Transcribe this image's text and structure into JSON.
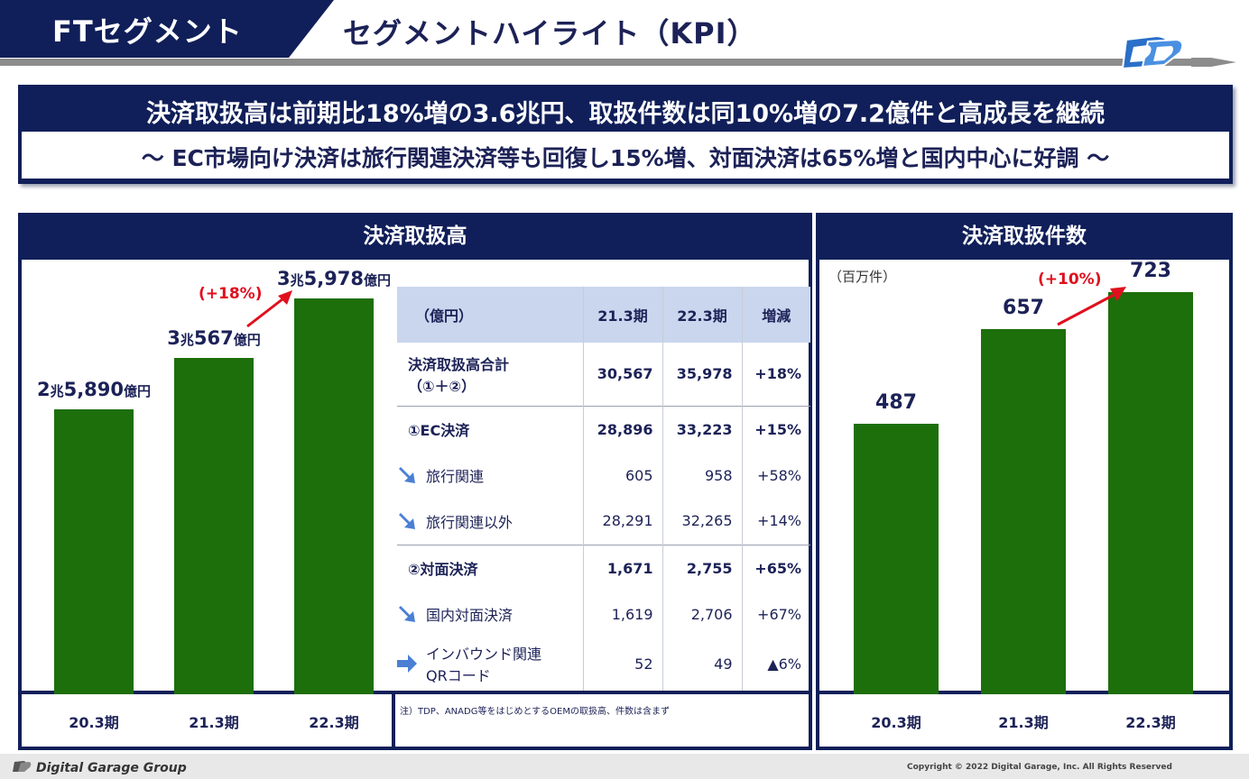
{
  "header": {
    "segment_tag": "FTセグメント",
    "title": "セグメントハイライト（KPI）",
    "logo_icon": "dg-logo-icon"
  },
  "banner": {
    "main": "決済取扱高は前期比18%増の3.6兆円、取扱件数は同10%増の7.2億件と高成長を継続",
    "sub": "～ EC市場向け決済は旅行関連決済等も回復し15%増、対面決済は65%増と国内中心に好調 ～"
  },
  "left_panel": {
    "title": "決済取扱高",
    "growth_label": "(+18%)",
    "bar_labels": [
      {
        "big1": "2",
        "small1": "兆",
        "big2": "5,890",
        "small2": "億円"
      },
      {
        "big1": "3",
        "small1": "兆",
        "big2": "567",
        "small2": "億円"
      },
      {
        "big1": "3",
        "small1": "兆",
        "big2": "5,978",
        "small2": "億円"
      }
    ]
  },
  "table": {
    "headers": [
      "（億円）",
      "21.3期",
      "22.3期",
      "増減"
    ],
    "rows": [
      {
        "label": "決済取扱高合計",
        "label2": "（①＋②）",
        "v1": "30,567",
        "v2": "35,978",
        "chg": "+18%",
        "bold": true
      },
      {
        "label": "①EC決済",
        "v1": "28,896",
        "v2": "33,223",
        "chg": "+15%",
        "bold": true
      },
      {
        "label": "旅行関連",
        "v1": "605",
        "v2": "958",
        "chg": "+58%",
        "icon": "up-right-arrow-icon"
      },
      {
        "label": "旅行関連以外",
        "v1": "28,291",
        "v2": "32,265",
        "chg": "+14%",
        "icon": "up-right-arrow-icon"
      },
      {
        "label": "②対面決済",
        "v1": "1,671",
        "v2": "2,755",
        "chg": "+65%",
        "bold": true
      },
      {
        "label": "国内対面決済",
        "v1": "1,619",
        "v2": "2,706",
        "chg": "+67%",
        "icon": "up-right-arrow-icon"
      },
      {
        "label": "インバウンド関連",
        "label2": "QRコード",
        "v1": "52",
        "v2": "49",
        "chg": "▲6%",
        "icon": "right-arrow-icon"
      }
    ],
    "footnote": "注）TDP、ANADG等をはじめとするOEMの取扱高、件数は含まず"
  },
  "right_panel": {
    "title": "決済取扱件数",
    "unit": "（百万件）",
    "growth_label": "(+10%)"
  },
  "footer": {
    "brand": "Digital Garage Group",
    "copyright": "Copyright © 2022 Digital Garage, Inc. All Rights Reserved"
  },
  "colors": {
    "navy": "#101f59",
    "bar_green": "#1d6f0b",
    "growth_red": "#e0101e",
    "table_header": "#c9d6ee",
    "arrow_blue": "#4a7fd4"
  },
  "chart_data": [
    {
      "type": "bar",
      "title": "決済取扱高",
      "categories": [
        "20.3期",
        "21.3期",
        "22.3期"
      ],
      "values": [
        25890,
        30567,
        35978
      ],
      "unit": "億円",
      "ylim": [
        0,
        42000
      ]
    },
    {
      "type": "bar",
      "title": "決済取扱件数",
      "categories": [
        "20.3期",
        "21.3期",
        "22.3期"
      ],
      "values": [
        487,
        657,
        723
      ],
      "unit": "百万件",
      "ylim": [
        0,
        830
      ]
    }
  ]
}
